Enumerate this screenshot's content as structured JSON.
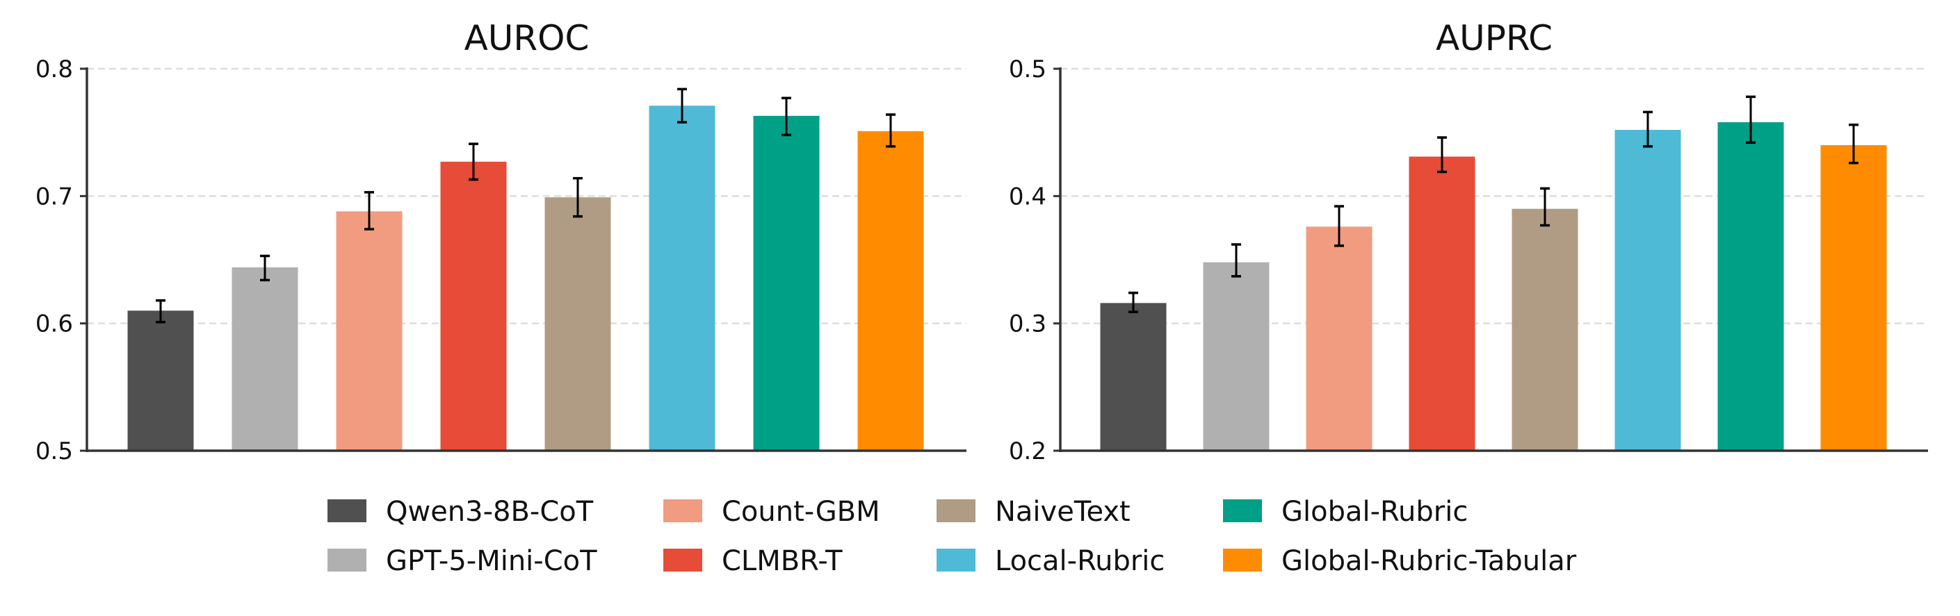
{
  "chart_data": [
    {
      "type": "bar",
      "title": "AUROC",
      "categories": [
        "Qwen3-8B-CoT",
        "GPT-5-Mini-CoT",
        "Count-GBM",
        "CLMBR-T",
        "NaiveText",
        "Local-Rubric",
        "Global-Rubric",
        "Global-Rubric-Tabular"
      ],
      "values": [
        0.61,
        0.644,
        0.688,
        0.727,
        0.699,
        0.771,
        0.763,
        0.751
      ],
      "error_low": [
        0.601,
        0.634,
        0.674,
        0.713,
        0.684,
        0.758,
        0.748,
        0.739
      ],
      "error_high": [
        0.618,
        0.653,
        0.703,
        0.741,
        0.714,
        0.784,
        0.777,
        0.764
      ],
      "ylim": [
        0.5,
        0.8
      ],
      "yticks": [
        "0.5",
        "0.6",
        "0.7",
        "0.8"
      ],
      "grid": "horizontal dashed"
    },
    {
      "type": "bar",
      "title": "AUPRC",
      "categories": [
        "Qwen3-8B-CoT",
        "GPT-5-Mini-CoT",
        "Count-GBM",
        "CLMBR-T",
        "NaiveText",
        "Local-Rubric",
        "Global-Rubric",
        "Global-Rubric-Tabular"
      ],
      "values": [
        0.316,
        0.348,
        0.376,
        0.431,
        0.39,
        0.452,
        0.458,
        0.44
      ],
      "error_low": [
        0.309,
        0.337,
        0.361,
        0.419,
        0.377,
        0.439,
        0.442,
        0.426
      ],
      "error_high": [
        0.324,
        0.362,
        0.392,
        0.446,
        0.406,
        0.466,
        0.478,
        0.456
      ],
      "ylim": [
        0.2,
        0.5
      ],
      "yticks": [
        "0.2",
        "0.3",
        "0.4",
        "0.5"
      ],
      "grid": "horizontal dashed"
    }
  ],
  "legend": {
    "placement": "bottom-center",
    "items": [
      {
        "label": "Qwen3-8B-CoT",
        "color": "#505050"
      },
      {
        "label": "GPT-5-Mini-CoT",
        "color": "#b0b0b0"
      },
      {
        "label": "Count-GBM",
        "color": "#f19c80"
      },
      {
        "label": "CLMBR-T",
        "color": "#e64c37"
      },
      {
        "label": "NaiveText",
        "color": "#b09c84"
      },
      {
        "label": "Local-Rubric",
        "color": "#4fbad6"
      },
      {
        "label": "Global-Rubric",
        "color": "#00a087"
      },
      {
        "label": "Global-Rubric-Tabular",
        "color": "#ff8c00"
      }
    ]
  }
}
